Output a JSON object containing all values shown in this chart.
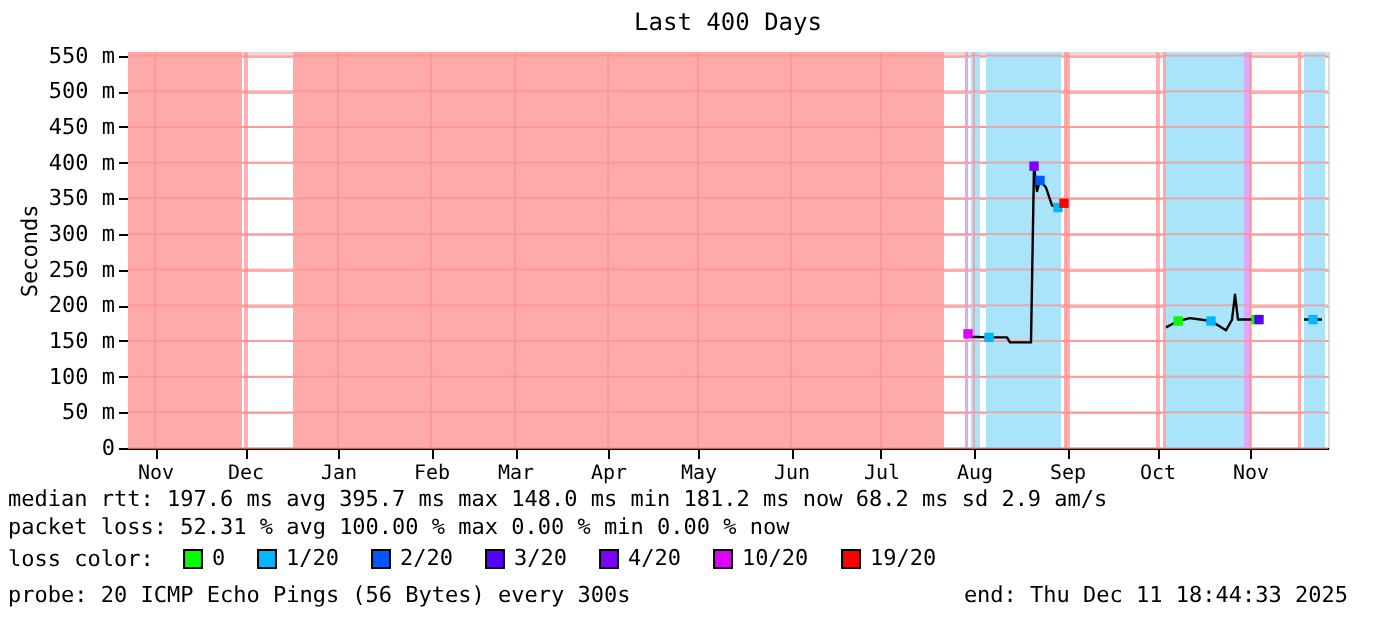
{
  "chart_data": {
    "type": "line",
    "title": "Last 400 Days",
    "ylabel": "Seconds",
    "xlim": [
      "2024-11-06",
      "2025-12-11"
    ],
    "xticks": [
      {
        "value": "2024-11-15",
        "label": "Nov"
      },
      {
        "value": "2024-12-15",
        "label": "Dec"
      },
      {
        "value": "2025-01-15",
        "label": "Jan"
      },
      {
        "value": "2025-02-15",
        "label": "Feb"
      },
      {
        "value": "2025-03-15",
        "label": "Mar"
      },
      {
        "value": "2025-04-15",
        "label": "Apr"
      },
      {
        "value": "2025-05-15",
        "label": "May"
      },
      {
        "value": "2025-06-15",
        "label": "Jun"
      },
      {
        "value": "2025-07-15",
        "label": "Jul"
      },
      {
        "value": "2025-08-15",
        "label": "Aug"
      },
      {
        "value": "2025-09-15",
        "label": "Sep"
      },
      {
        "value": "2025-10-15",
        "label": "Oct"
      },
      {
        "value": "2025-11-15",
        "label": "Nov"
      }
    ],
    "ylim": [
      0,
      555
    ],
    "yticks": [
      {
        "value": 0,
        "label": "0"
      },
      {
        "value": 50,
        "label": "50 m"
      },
      {
        "value": 100,
        "label": "100 m"
      },
      {
        "value": 150,
        "label": "150 m"
      },
      {
        "value": 200,
        "label": "200 m"
      },
      {
        "value": 250,
        "label": "250 m"
      },
      {
        "value": 300,
        "label": "300 m"
      },
      {
        "value": 350,
        "label": "350 m"
      },
      {
        "value": 400,
        "label": "400 m"
      },
      {
        "value": 450,
        "label": "450 m"
      },
      {
        "value": 500,
        "label": "500 m"
      },
      {
        "value": 550,
        "label": "550 m"
      }
    ],
    "grid": true,
    "legend": "bottom",
    "legend_title": "loss color:",
    "series": [
      {
        "color": "#000000",
        "marker": "none",
        "x": [
          "2025-08-13",
          "2025-08-14",
          "2025-08-20",
          "2025-08-26",
          "2025-08-27",
          "2025-09-03",
          "2025-09-04",
          "2025-09-05",
          "2025-09-06",
          "2025-09-08",
          "2025-09-10",
          "2025-09-12",
          "2025-09-14",
          null,
          "2025-10-18",
          "2025-10-22",
          "2025-10-26",
          "2025-11-02",
          "2025-11-07",
          "2025-11-09",
          "2025-11-10",
          "2025-11-11",
          "2025-11-18",
          null,
          "2025-12-03",
          "2025-12-09"
        ],
        "values": [
          160,
          156,
          155,
          155,
          148,
          148,
          395,
          360,
          375,
          365,
          340,
          337,
          343,
          null,
          169,
          178,
          182,
          178,
          165,
          180,
          215,
          180,
          180,
          null,
          180,
          180
        ]
      },
      {
        "name": "0",
        "color": "#00ff00",
        "type": "scatter",
        "x": [
          "2025-10-22",
          "2025-11-17"
        ],
        "values": [
          178,
          180
        ]
      },
      {
        "name": "1/20",
        "color": "#00b8ff",
        "type": "scatter",
        "x": [
          "2025-08-20",
          "2025-09-12",
          "2025-11-02",
          "2025-12-06"
        ],
        "values": [
          155,
          337,
          178,
          180
        ]
      },
      {
        "name": "2/20",
        "color": "#0059ff",
        "type": "scatter",
        "x": [
          "2025-09-06"
        ],
        "values": [
          375
        ]
      },
      {
        "name": "3/20",
        "color": "#5500ff",
        "type": "scatter",
        "x": [
          "2025-11-18"
        ],
        "values": [
          180
        ]
      },
      {
        "name": "4/20",
        "color": "#7e00ff",
        "type": "scatter",
        "x": [
          "2025-09-04"
        ],
        "values": [
          395
        ]
      },
      {
        "name": "10/20",
        "color": "#dd00ff",
        "type": "scatter",
        "x": [
          "2025-08-13"
        ],
        "values": [
          160
        ]
      },
      {
        "name": "19/20",
        "color": "#ff0000",
        "type": "scatter",
        "x": [
          "2025-09-14"
        ],
        "values": [
          343
        ]
      }
    ],
    "marker": "square",
    "line_style": "solid",
    "bands": [
      {
        "axis": "x",
        "from": "2024-11-06",
        "to": "2024-12-14",
        "color": "#ffaaaa"
      },
      {
        "axis": "x",
        "from": "2024-12-31",
        "to": "2025-08-05",
        "color": "#ffaaaa"
      },
      {
        "axis": "x",
        "from": "2025-08-12",
        "to": "2025-08-13",
        "color": "#dcaaf8"
      },
      {
        "axis": "x",
        "from": "2025-08-14",
        "to": "2025-08-17",
        "color": "#aae4fa"
      },
      {
        "axis": "x",
        "from": "2025-08-19",
        "to": "2025-09-13",
        "color": "#aae4fa"
      },
      {
        "axis": "x",
        "from": "2025-09-14",
        "to": "2025-09-15",
        "color": "#ffaaaa"
      },
      {
        "axis": "x",
        "from": "2025-10-17",
        "to": "2025-10-18",
        "color": "#ffaaaa"
      },
      {
        "axis": "x",
        "from": "2025-10-18",
        "to": "2025-11-13",
        "color": "#aae4fa"
      },
      {
        "axis": "x",
        "from": "2025-11-13",
        "to": "2025-11-15",
        "color": "#dcaaf8"
      },
      {
        "axis": "x",
        "from": "2025-12-01",
        "to": "2025-12-02",
        "color": "#ffaaaa"
      },
      {
        "axis": "x",
        "from": "2025-12-03",
        "to": "2025-12-10",
        "color": "#aae4fa"
      }
    ],
    "annotations": [
      "median rtt:  197.6 ms avg  395.7 ms max  148.0 ms min  181.2 ms now  68.2 ms sd  2.9   am/s",
      "packet loss: 52.31 % avg  100.00 % max  0.00 % min  0.00 % now",
      "probe:       20 ICMP Echo Pings (56 Bytes) every 300s",
      "end: Thu Dec 11 18:44:33 2025"
    ]
  }
}
